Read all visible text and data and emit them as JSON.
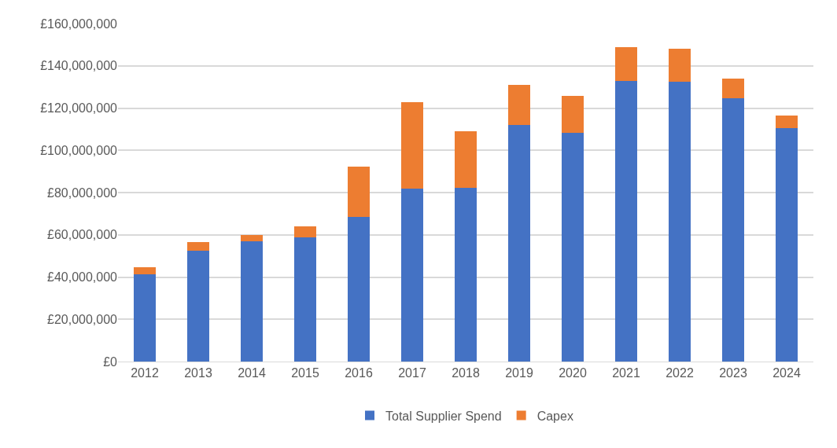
{
  "chart_data": {
    "type": "bar",
    "stacked": true,
    "categories": [
      "2012",
      "2013",
      "2014",
      "2015",
      "2016",
      "2017",
      "2018",
      "2019",
      "2020",
      "2021",
      "2022",
      "2023",
      "2024"
    ],
    "series": [
      {
        "name": "Total Supplier Spend",
        "color": "#4472c4",
        "values": [
          41200000,
          52500000,
          57000000,
          58800000,
          68600000,
          82000000,
          82400000,
          112000000,
          108300000,
          133000000,
          132300000,
          124800000,
          110500000
        ]
      },
      {
        "name": "Capex",
        "color": "#ed7d31",
        "values": [
          3400000,
          4100000,
          3000000,
          5300000,
          23600000,
          40900000,
          26600000,
          19100000,
          17600000,
          15700000,
          15700000,
          9000000,
          6000000
        ]
      }
    ],
    "ylim": [
      0,
      160000000
    ],
    "yticks": [
      {
        "value": 0,
        "label": "£0"
      },
      {
        "value": 20000000,
        "label": "£20,000,000"
      },
      {
        "value": 40000000,
        "label": "£40,000,000"
      },
      {
        "value": 60000000,
        "label": "£60,000,000"
      },
      {
        "value": 80000000,
        "label": "£80,000,000"
      },
      {
        "value": 100000000,
        "label": "£100,000,000"
      },
      {
        "value": 120000000,
        "label": "£120,000,000"
      },
      {
        "value": 140000000,
        "label": "£140,000,000"
      },
      {
        "value": 160000000,
        "label": "£160,000,000"
      }
    ],
    "grid": "y",
    "legend": "bottom"
  }
}
